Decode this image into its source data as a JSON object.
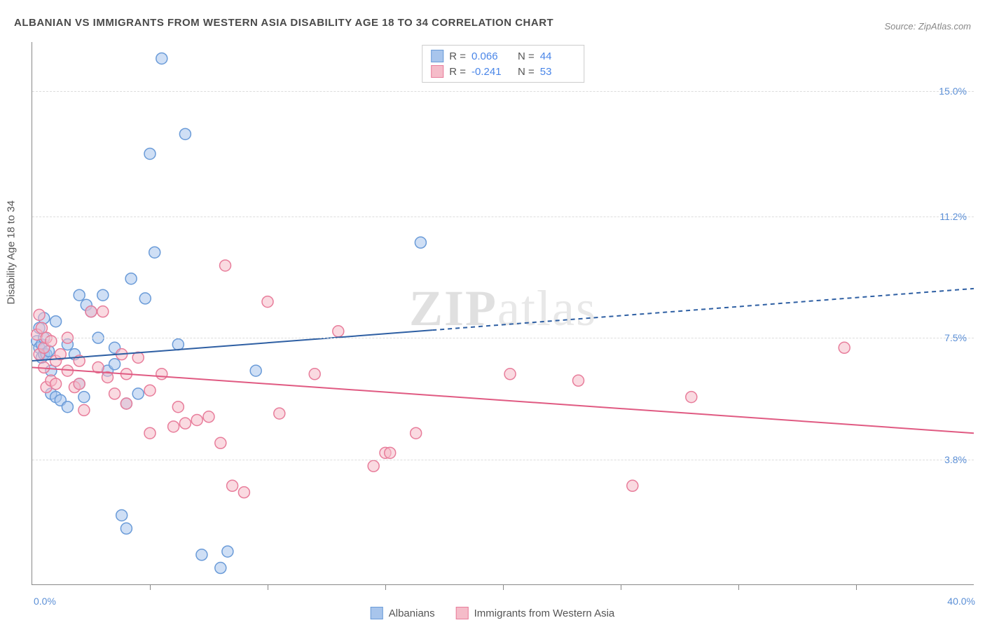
{
  "title": "ALBANIAN VS IMMIGRANTS FROM WESTERN ASIA DISABILITY AGE 18 TO 34 CORRELATION CHART",
  "source": "Source: ZipAtlas.com",
  "ylabel": "Disability Age 18 to 34",
  "watermark": {
    "left": "ZIP",
    "right": "atlas"
  },
  "chart": {
    "type": "scatter-with-regression",
    "xlim": [
      0,
      40
    ],
    "ylim": [
      0,
      16.5
    ],
    "x_axis_label_left": "0.0%",
    "x_axis_label_right": "40.0%",
    "y_ticks": [
      {
        "v": 3.8,
        "label": "3.8%"
      },
      {
        "v": 7.5,
        "label": "7.5%"
      },
      {
        "v": 11.2,
        "label": "11.2%"
      },
      {
        "v": 15.0,
        "label": "15.0%"
      }
    ],
    "x_ticks": [
      5,
      10,
      15,
      20,
      25,
      30,
      35
    ],
    "background_color": "#ffffff",
    "grid_color": "#dddddd",
    "marker_radius": 8,
    "marker_opacity": 0.55,
    "marker_stroke_width": 1.5,
    "line_width": 2
  },
  "series": [
    {
      "name": "Albanians",
      "color_fill": "#a8c5ec",
      "color_stroke": "#6a9bd8",
      "line_color": "#2e5fa3",
      "R": "0.066",
      "N": "44",
      "regression": {
        "y_at_x0": 6.8,
        "y_at_x40": 9.0,
        "solid_until_x": 17,
        "dashed": true
      },
      "points": [
        [
          0.2,
          7.4
        ],
        [
          0.3,
          7.2
        ],
        [
          0.3,
          7.8
        ],
        [
          0.4,
          6.9
        ],
        [
          0.4,
          7.3
        ],
        [
          0.5,
          7.5
        ],
        [
          0.5,
          8.1
        ],
        [
          0.5,
          7.0
        ],
        [
          0.6,
          7.0
        ],
        [
          0.7,
          7.1
        ],
        [
          0.8,
          6.5
        ],
        [
          0.8,
          5.8
        ],
        [
          1.0,
          5.7
        ],
        [
          1.0,
          8.0
        ],
        [
          1.2,
          5.6
        ],
        [
          1.5,
          5.4
        ],
        [
          1.5,
          7.3
        ],
        [
          1.8,
          7.0
        ],
        [
          2.0,
          8.8
        ],
        [
          2.0,
          6.1
        ],
        [
          2.2,
          5.7
        ],
        [
          2.3,
          8.5
        ],
        [
          2.5,
          8.3
        ],
        [
          2.8,
          7.5
        ],
        [
          3.0,
          8.8
        ],
        [
          3.2,
          6.5
        ],
        [
          3.5,
          6.7
        ],
        [
          3.5,
          7.2
        ],
        [
          3.8,
          2.1
        ],
        [
          4.0,
          1.7
        ],
        [
          4.0,
          5.5
        ],
        [
          4.2,
          9.3
        ],
        [
          4.5,
          5.8
        ],
        [
          4.8,
          8.7
        ],
        [
          5.0,
          13.1
        ],
        [
          5.2,
          10.1
        ],
        [
          5.5,
          16.0
        ],
        [
          6.2,
          7.3
        ],
        [
          6.5,
          13.7
        ],
        [
          7.2,
          0.9
        ],
        [
          8.0,
          0.5
        ],
        [
          8.3,
          1.0
        ],
        [
          9.5,
          6.5
        ],
        [
          16.5,
          10.4
        ]
      ]
    },
    {
      "name": "Immigrants from Western Asia",
      "color_fill": "#f5bcc9",
      "color_stroke": "#e87d9b",
      "line_color": "#e05a82",
      "R": "-0.241",
      "N": "53",
      "regression": {
        "y_at_x0": 6.6,
        "y_at_x40": 4.6,
        "solid_until_x": 40,
        "dashed": false
      },
      "points": [
        [
          0.2,
          7.6
        ],
        [
          0.3,
          7.0
        ],
        [
          0.3,
          8.2
        ],
        [
          0.4,
          7.8
        ],
        [
          0.5,
          6.6
        ],
        [
          0.5,
          7.2
        ],
        [
          0.6,
          6.0
        ],
        [
          0.6,
          7.5
        ],
        [
          0.8,
          6.2
        ],
        [
          0.8,
          7.4
        ],
        [
          1.0,
          6.8
        ],
        [
          1.0,
          6.1
        ],
        [
          1.2,
          7.0
        ],
        [
          1.5,
          6.5
        ],
        [
          1.5,
          7.5
        ],
        [
          1.8,
          6.0
        ],
        [
          2.0,
          6.1
        ],
        [
          2.0,
          6.8
        ],
        [
          2.2,
          5.3
        ],
        [
          2.5,
          8.3
        ],
        [
          2.8,
          6.6
        ],
        [
          3.0,
          8.3
        ],
        [
          3.2,
          6.3
        ],
        [
          3.5,
          5.8
        ],
        [
          3.8,
          7.0
        ],
        [
          4.0,
          5.5
        ],
        [
          4.0,
          6.4
        ],
        [
          4.5,
          6.9
        ],
        [
          5.0,
          4.6
        ],
        [
          5.0,
          5.9
        ],
        [
          5.5,
          6.4
        ],
        [
          6.0,
          4.8
        ],
        [
          6.2,
          5.4
        ],
        [
          6.5,
          4.9
        ],
        [
          7.0,
          5.0
        ],
        [
          7.5,
          5.1
        ],
        [
          8.0,
          4.3
        ],
        [
          8.2,
          9.7
        ],
        [
          8.5,
          3.0
        ],
        [
          9.0,
          2.8
        ],
        [
          10.0,
          8.6
        ],
        [
          10.5,
          5.2
        ],
        [
          12.0,
          6.4
        ],
        [
          13.0,
          7.7
        ],
        [
          14.5,
          3.6
        ],
        [
          15.0,
          4.0
        ],
        [
          15.2,
          4.0
        ],
        [
          16.3,
          4.6
        ],
        [
          20.3,
          6.4
        ],
        [
          23.2,
          6.2
        ],
        [
          25.5,
          3.0
        ],
        [
          28.0,
          5.7
        ],
        [
          34.5,
          7.2
        ]
      ]
    }
  ],
  "top_legend": {
    "R_label": "R =",
    "N_label": "N ="
  },
  "bottom_legend_labels": [
    "Albanians",
    "Immigrants from Western Asia"
  ]
}
